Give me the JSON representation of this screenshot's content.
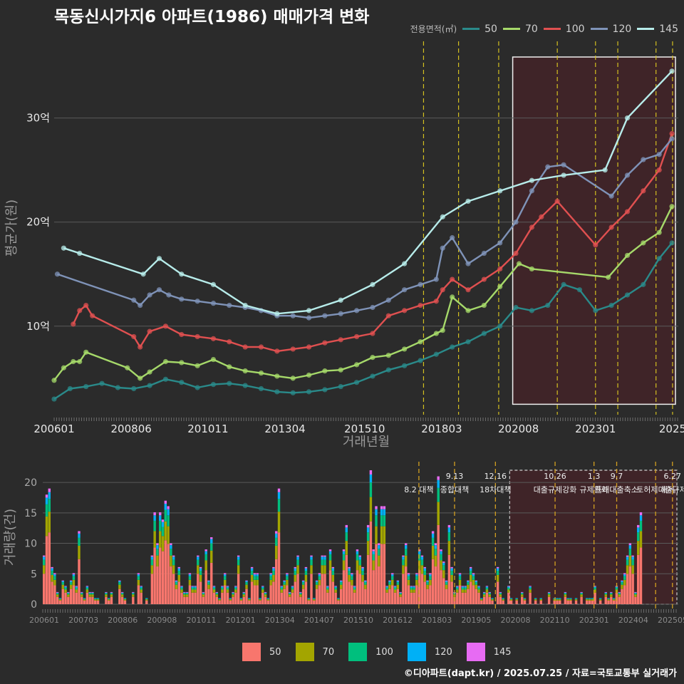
{
  "title": "목동신시가지6 아파트(1986) 매매가격 변화",
  "legend": {
    "title": "전용면적(㎡)",
    "items": [
      {
        "label": "50",
        "line_color": "#2a8a8a",
        "bar_color": "#f8766d"
      },
      {
        "label": "70",
        "line_color": "#a6d96a",
        "bar_color": "#a3a500"
      },
      {
        "label": "100",
        "line_color": "#e05050",
        "bar_color": "#00bf7d"
      },
      {
        "label": "120",
        "line_color": "#7f93b8",
        "bar_color": "#00b0f6"
      },
      {
        "label": "145",
        "line_color": "#b7ecea",
        "bar_color": "#e76bf3"
      }
    ]
  },
  "credit": "©디아파트(dapt.kr) / 2025.07.25 / 자료=국토교통부 실거래가",
  "chart_data": [
    {
      "type": "line",
      "title": "목동신시가지6 아파트(1986) 매매가격 변화",
      "xlabel": "거래년월",
      "ylabel": "평균가(원)",
      "y_unit": "억",
      "ylim": [
        1.5,
        37.5
      ],
      "yticks": [
        10,
        20,
        30
      ],
      "ytick_labels": [
        "10억",
        "20억",
        "30억"
      ],
      "xlim": [
        2006.0,
        2025.6
      ],
      "xticks": [
        2006.0,
        2008.42,
        2010.83,
        2013.25,
        2015.75,
        2018.17,
        2020.58,
        2023.0,
        2025.42
      ],
      "xtick_labels": [
        "200601",
        "200806",
        "201011",
        "201304",
        "201510",
        "201803",
        "202008",
        "202301",
        "2025"
      ],
      "series": [
        {
          "name": "50",
          "color": "#2a8a8a",
          "x": [
            2006.0,
            2006.5,
            2007.0,
            2007.5,
            2008.0,
            2008.5,
            2009.0,
            2009.5,
            2010.0,
            2010.5,
            2011.0,
            2011.5,
            2012.0,
            2012.5,
            2013.0,
            2013.5,
            2014.0,
            2014.5,
            2015.0,
            2015.5,
            2016.0,
            2016.5,
            2017.0,
            2017.5,
            2018.0,
            2018.5,
            2019.0,
            2019.5,
            2020.0,
            2020.5,
            2021.0,
            2021.5,
            2022.0,
            2022.5,
            2023.0,
            2023.5,
            2024.0,
            2024.5,
            2025.0,
            2025.4
          ],
          "y": [
            3.0,
            4.0,
            4.2,
            4.5,
            4.1,
            4.0,
            4.3,
            4.9,
            4.6,
            4.1,
            4.4,
            4.5,
            4.3,
            4.0,
            3.7,
            3.6,
            3.7,
            3.9,
            4.2,
            4.6,
            5.2,
            5.8,
            6.2,
            6.7,
            7.3,
            8.0,
            8.5,
            9.3,
            10.0,
            11.8,
            11.5,
            12.0,
            14.0,
            13.5,
            11.5,
            12.0,
            13.0,
            14.0,
            16.5,
            18.0
          ]
        },
        {
          "name": "70",
          "color": "#a6d96a",
          "x": [
            2006.0,
            2006.3,
            2006.6,
            2006.8,
            2007.0,
            2008.3,
            2008.7,
            2009.0,
            2009.5,
            2010.0,
            2010.5,
            2011.0,
            2011.5,
            2012.0,
            2012.5,
            2013.0,
            2013.5,
            2014.0,
            2014.5,
            2015.0,
            2015.5,
            2016.0,
            2016.5,
            2017.0,
            2017.5,
            2018.0,
            2018.2,
            2018.5,
            2019.0,
            2019.5,
            2020.0,
            2020.6,
            2021.0,
            2023.4,
            2024.0,
            2024.5,
            2025.0,
            2025.4
          ],
          "y": [
            4.8,
            6.0,
            6.6,
            6.6,
            7.5,
            6.0,
            5.0,
            5.6,
            6.6,
            6.5,
            6.2,
            6.8,
            6.1,
            5.7,
            5.5,
            5.2,
            5.0,
            5.3,
            5.7,
            5.8,
            6.3,
            7.0,
            7.2,
            7.8,
            8.5,
            9.3,
            9.6,
            12.8,
            11.5,
            12.0,
            13.8,
            16.0,
            15.5,
            14.7,
            16.8,
            18.0,
            19.0,
            21.5
          ]
        },
        {
          "name": "100",
          "color": "#e05050",
          "x": [
            2006.6,
            2006.8,
            2007.0,
            2007.2,
            2008.5,
            2008.7,
            2009.0,
            2009.5,
            2010.0,
            2010.5,
            2011.0,
            2011.5,
            2012.0,
            2012.5,
            2013.0,
            2013.5,
            2014.0,
            2014.5,
            2015.0,
            2015.5,
            2016.0,
            2016.5,
            2017.0,
            2017.5,
            2018.0,
            2018.2,
            2018.5,
            2019.0,
            2019.5,
            2020.0,
            2020.5,
            2021.0,
            2021.3,
            2021.8,
            2023.0,
            2023.5,
            2024.0,
            2024.5,
            2025.0,
            2025.4
          ],
          "y": [
            10.2,
            11.5,
            12.0,
            11.0,
            9.0,
            8.0,
            9.5,
            10.0,
            9.2,
            9.0,
            8.8,
            8.5,
            8.0,
            8.0,
            7.6,
            7.8,
            8.0,
            8.4,
            8.7,
            9.0,
            9.3,
            11.0,
            11.5,
            12.0,
            12.4,
            13.5,
            14.5,
            13.5,
            14.5,
            15.5,
            17.0,
            19.5,
            20.5,
            22.0,
            17.8,
            19.5,
            21.0,
            23.0,
            25.0,
            28.5
          ]
        },
        {
          "name": "120",
          "color": "#7f93b8",
          "x": [
            2006.1,
            2008.5,
            2008.7,
            2009.0,
            2009.3,
            2009.6,
            2010.0,
            2010.5,
            2011.0,
            2011.5,
            2012.0,
            2012.5,
            2013.0,
            2013.5,
            2014.0,
            2014.5,
            2015.0,
            2015.5,
            2016.0,
            2016.5,
            2017.0,
            2017.5,
            2018.0,
            2018.2,
            2018.5,
            2019.0,
            2019.5,
            2020.0,
            2020.5,
            2021.0,
            2021.5,
            2022.0,
            2023.5,
            2024.0,
            2024.5,
            2025.0,
            2025.4
          ],
          "y": [
            15.0,
            12.5,
            12.0,
            13.0,
            13.5,
            13.0,
            12.6,
            12.4,
            12.2,
            12.0,
            11.8,
            11.5,
            11.0,
            11.0,
            10.8,
            11.0,
            11.2,
            11.5,
            11.8,
            12.5,
            13.5,
            14.0,
            14.5,
            17.5,
            18.5,
            16.0,
            17.0,
            18.0,
            20.0,
            23.0,
            25.3,
            25.5,
            22.5,
            24.5,
            26.0,
            26.5,
            28.0
          ]
        },
        {
          "name": "145",
          "color": "#b7ecea",
          "x": [
            2006.3,
            2006.8,
            2008.8,
            2009.3,
            2010.0,
            2011.0,
            2012.0,
            2013.0,
            2014.0,
            2015.0,
            2016.0,
            2017.0,
            2018.2,
            2019.0,
            2020.0,
            2021.0,
            2022.0,
            2023.3,
            2024.0,
            2025.4
          ],
          "y": [
            17.5,
            17.0,
            15.0,
            16.5,
            15.0,
            14.0,
            12.0,
            11.2,
            11.5,
            12.5,
            14.0,
            16.0,
            20.5,
            22.0,
            23.0,
            24.0,
            24.5,
            25.0,
            30.0,
            34.5
          ]
        }
      ],
      "events": [
        {
          "x": 2017.6,
          "label": "8.2 대책"
        },
        {
          "x": 2018.7,
          "label": "9.13 종합대책"
        },
        {
          "x": 2019.96,
          "label": "12.16 18차대책"
        },
        {
          "x": 2021.8,
          "label": "10.26 대출규제강화"
        },
        {
          "x": 2023.0,
          "label": "1.3 규제완화"
        },
        {
          "x": 2023.7,
          "label": "9.7 특례대출축소"
        },
        {
          "x": 2024.9,
          "label": "토허제 해제"
        },
        {
          "x": 2025.42,
          "label": "6.27 대출규제"
        }
      ],
      "highlight_range": [
        2020.4,
        2025.6
      ]
    },
    {
      "type": "bar",
      "stacked": true,
      "ylabel": "거래량(건)",
      "ylim": [
        0,
        22
      ],
      "yticks": [
        0,
        5,
        10,
        15,
        20
      ],
      "xtick_labels": [
        "200601",
        "200703",
        "200806",
        "200908",
        "201011",
        "201201",
        "201304",
        "201407",
        "201510",
        "201612",
        "201803",
        "201905",
        "202008",
        "202110",
        "202301",
        "202404",
        "202505"
      ],
      "annotations": [
        {
          "x": 2017.6,
          "top": "",
          "bottom": "8.2 대책"
        },
        {
          "x": 2018.7,
          "top": "9.13",
          "bottom": "종합대책"
        },
        {
          "x": 2019.96,
          "top": "12.16",
          "bottom": "18차대책"
        },
        {
          "x": 2021.8,
          "top": "10.26",
          "bottom": "대출규제강화"
        },
        {
          "x": 2023.0,
          "top": "1.3",
          "bottom": "규제완화"
        },
        {
          "x": 2023.7,
          "top": "9.7",
          "bottom": "특례대출축소"
        },
        {
          "x": 2024.9,
          "top": "",
          "bottom": "토허제 해제"
        },
        {
          "x": 2025.42,
          "top": "6.27",
          "bottom": "대출규제"
        }
      ],
      "highlight_range": [
        2020.4,
        2025.6
      ],
      "volumes": {
        "x_start": 2006.0,
        "step": 0.0833,
        "total": [
          8,
          18,
          19,
          6,
          5,
          2,
          1,
          4,
          3,
          2,
          4,
          5,
          3,
          12,
          2,
          1,
          3,
          2,
          2,
          1,
          1,
          0,
          0,
          2,
          1,
          2,
          0,
          0,
          4,
          2,
          1,
          0,
          0,
          2,
          0,
          5,
          3,
          0,
          1,
          0,
          8,
          15,
          10,
          15,
          14,
          17,
          16,
          10,
          8,
          4,
          6,
          3,
          2,
          2,
          5,
          3,
          3,
          8,
          6,
          2,
          9,
          4,
          11,
          3,
          2,
          1,
          3,
          5,
          3,
          1,
          2,
          3,
          8,
          1,
          2,
          4,
          1,
          6,
          5,
          5,
          1,
          3,
          2,
          1,
          5,
          6,
          12,
          19,
          3,
          4,
          5,
          2,
          3,
          6,
          8,
          2,
          4,
          6,
          1,
          8,
          1,
          4,
          5,
          8,
          8,
          3,
          9,
          6,
          3,
          1,
          4,
          9,
          13,
          6,
          5,
          3,
          9,
          8,
          6,
          4,
          13,
          22,
          9,
          16,
          10,
          16,
          16,
          3,
          4,
          5,
          3,
          4,
          2,
          8,
          10,
          5,
          3,
          3,
          5,
          9,
          8,
          6,
          4,
          5,
          12,
          10,
          21,
          9,
          7,
          4,
          13,
          6,
          2,
          3,
          5,
          3,
          3,
          4,
          6,
          5,
          4,
          3,
          1,
          2,
          3,
          2,
          1,
          0,
          6,
          2,
          1,
          0,
          3,
          1,
          0,
          1,
          0,
          2,
          1,
          0,
          3,
          0,
          1,
          0,
          1,
          0,
          0,
          2,
          0,
          1,
          1,
          1,
          0,
          2,
          1,
          1,
          0,
          1,
          0,
          2,
          0,
          1,
          1,
          1,
          3,
          0,
          1,
          0,
          2,
          1,
          2,
          1,
          3,
          2,
          4,
          5,
          8,
          10,
          8,
          2,
          13,
          15
        ],
        "share": {
          "50": 0.62,
          "70": 0.18,
          "100": 0.11,
          "120": 0.06,
          "145": 0.03
        }
      }
    }
  ]
}
